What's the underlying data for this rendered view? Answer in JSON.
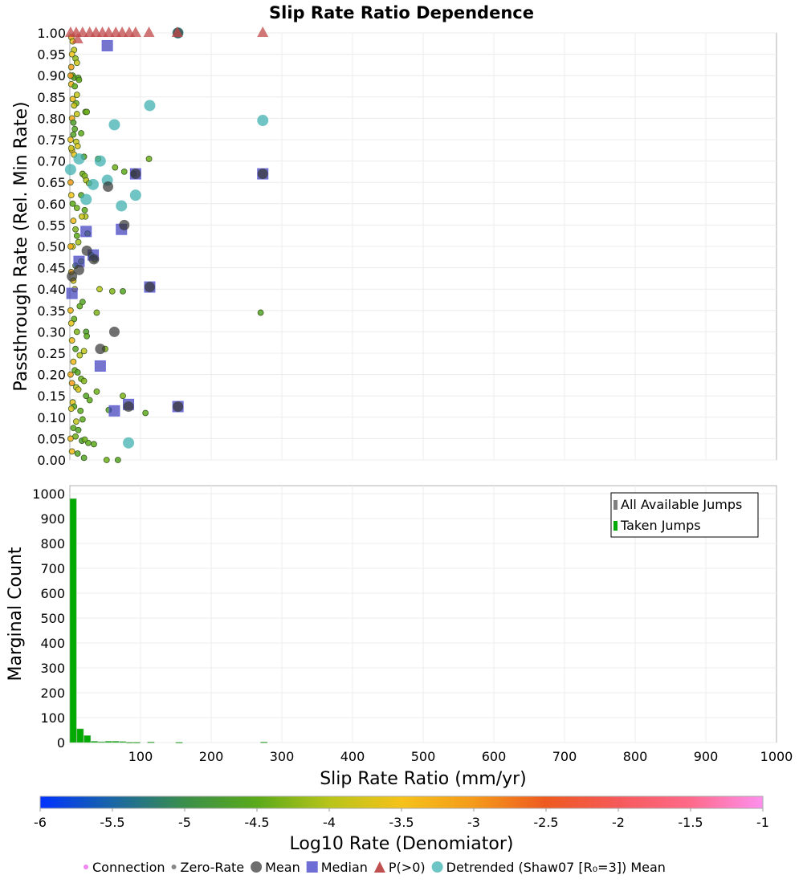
{
  "chart_data": [
    {
      "type": "scatter",
      "title": "Slip Rate Ratio Dependence",
      "xlabel": "Slip Rate Ratio (mm/yr)",
      "ylabel": "Passthrough Rate (Rel. Min Rate)",
      "xlim": [
        0,
        1000
      ],
      "ylim": [
        0,
        1
      ],
      "grid": true,
      "yticks": [
        "0.00",
        "0.05",
        "0.10",
        "0.15",
        "0.20",
        "0.25",
        "0.30",
        "0.35",
        "0.40",
        "0.45",
        "0.50",
        "0.55",
        "0.60",
        "0.65",
        "0.70",
        "0.75",
        "0.80",
        "0.85",
        "0.90",
        "0.95",
        "1.00"
      ],
      "colorbar": {
        "label": "Log10 Rate (Denomiator)",
        "range": [
          -6,
          -1
        ],
        "ticks": [
          "-6",
          "-5.5",
          "-5",
          "-4.5",
          "-4",
          "-3.5",
          "-3",
          "-2.5",
          "-2",
          "-1.5",
          "-1"
        ],
        "stops": [
          "#0033ff",
          "#1a66a6",
          "#3a8f4a",
          "#5aaa1a",
          "#b8c41a",
          "#f5c21a",
          "#f59a1a",
          "#ee5a20",
          "#f55a5a",
          "#ff6a8a",
          "#ff90ee"
        ]
      },
      "legend": {
        "placement": "bottom",
        "items": [
          {
            "label": "Connection",
            "marker": "small-dot",
            "color": "#ee88ee"
          },
          {
            "label": "Zero-Rate",
            "marker": "small-dot",
            "color": "#888888"
          },
          {
            "label": "Mean",
            "marker": "circle",
            "color": "#555555"
          },
          {
            "label": "Median",
            "marker": "square",
            "color": "#5555cc"
          },
          {
            "label": "P(>0)",
            "marker": "triangle",
            "color": "#c05050"
          },
          {
            "label": "Detrended (Shaw07 [R₀=3]) Mean",
            "marker": "circle",
            "color": "#55bbbb"
          }
        ]
      },
      "series": [
        {
          "name": "Mean",
          "points": [
            [
              54,
              0.64
            ],
            [
              77,
              0.55
            ],
            [
              24,
              0.49
            ],
            [
              34,
              0.47
            ],
            [
              13,
              0.445
            ],
            [
              3,
              0.43
            ],
            [
              43,
              0.26
            ],
            [
              63,
              0.3
            ],
            [
              93,
              0.67
            ],
            [
              113,
              0.405
            ],
            [
              153,
              0.125
            ],
            [
              83,
              0.125
            ],
            [
              273,
              0.67
            ],
            [
              153,
              1.0
            ]
          ]
        },
        {
          "name": "Median",
          "points": [
            [
              53,
              0.97
            ],
            [
              23,
              0.535
            ],
            [
              73,
              0.54
            ],
            [
              33,
              0.48
            ],
            [
              13,
              0.465
            ],
            [
              3,
              0.39
            ],
            [
              43,
              0.22
            ],
            [
              63,
              0.115
            ],
            [
              83,
              0.13
            ],
            [
              93,
              0.67
            ],
            [
              113,
              0.405
            ],
            [
              153,
              0.125
            ],
            [
              273,
              0.67
            ]
          ]
        },
        {
          "name": "P(>0)",
          "points": [
            [
              1,
              1.0
            ],
            [
              9,
              1.0
            ],
            [
              18,
              1.0
            ],
            [
              28,
              1.0
            ],
            [
              37,
              1.0
            ],
            [
              46,
              1.0
            ],
            [
              55,
              1.0
            ],
            [
              65,
              1.0
            ],
            [
              74,
              1.0
            ],
            [
              84,
              1.0
            ],
            [
              93,
              1.0
            ],
            [
              112,
              1.0
            ],
            [
              152,
              1.0
            ],
            [
              273,
              1.0
            ],
            [
              11,
              0.985
            ]
          ]
        },
        {
          "name": "Detrended (Shaw07 [R₀=3]) Mean",
          "points": [
            [
              113,
              0.83
            ],
            [
              63,
              0.785
            ],
            [
              273,
              0.795
            ],
            [
              13,
              0.705
            ],
            [
              43,
              0.7
            ],
            [
              1,
              0.68
            ],
            [
              53,
              0.655
            ],
            [
              33,
              0.645
            ],
            [
              23,
              0.61
            ],
            [
              93,
              0.62
            ],
            [
              73,
              0.595
            ],
            [
              83,
              0.04
            ],
            [
              153,
              1.0
            ]
          ]
        },
        {
          "name": "Connection",
          "colored_by": "log10_rate",
          "points": [
            [
              2,
              0.99,
              -3.2
            ],
            [
              4,
              0.98,
              -3.6
            ],
            [
              6,
              0.96,
              -3.9
            ],
            [
              3,
              0.95,
              -3.5
            ],
            [
              8,
              0.94,
              -4.2
            ],
            [
              2,
              0.92,
              -3.0
            ],
            [
              10,
              0.93,
              -3.8
            ],
            [
              4,
              0.9,
              -4.4
            ],
            [
              6,
              0.895,
              -4.6
            ],
            [
              12,
              0.895,
              -4.6
            ],
            [
              13,
              0.89,
              -4.5
            ],
            [
              2,
              0.88,
              -3.3
            ],
            [
              7,
              0.875,
              -4.5
            ],
            [
              10,
              0.855,
              -3.9
            ],
            [
              4,
              0.845,
              -3.4
            ],
            [
              9,
              0.835,
              -4.4
            ],
            [
              6,
              0.83,
              -3.8
            ],
            [
              22,
              0.815,
              -4.5
            ],
            [
              24,
              0.815,
              -4.4
            ],
            [
              10,
              0.81,
              -3.9
            ],
            [
              3,
              0.8,
              -3.1
            ],
            [
              5,
              0.79,
              -4.7
            ],
            [
              7,
              0.775,
              -4.6
            ],
            [
              16,
              0.765,
              -4.5
            ],
            [
              5,
              0.762,
              -4.6
            ],
            [
              9,
              0.745,
              -3.9
            ],
            [
              11,
              0.735,
              -3.7
            ],
            [
              3,
              0.725,
              -3.3
            ],
            [
              6,
              0.715,
              -3.6
            ],
            [
              20,
              0.71,
              -4.7
            ],
            [
              40,
              0.705,
              -4.3
            ],
            [
              112,
              0.705,
              -4.4
            ],
            [
              77,
              0.675,
              -4.5
            ],
            [
              18,
              0.67,
              -4.4
            ],
            [
              21,
              0.665,
              -4.3
            ],
            [
              23,
              0.655,
              -4.0
            ],
            [
              27,
              0.648,
              -4.2
            ],
            [
              64,
              0.685,
              -4.4
            ],
            [
              90,
              0.67,
              -4.5
            ],
            [
              16,
              0.62,
              -4.6
            ],
            [
              4,
              0.6,
              -4.5
            ],
            [
              21,
              0.585,
              -4.5
            ],
            [
              10,
              0.59,
              -4.4
            ],
            [
              22,
              0.57,
              -4.0
            ],
            [
              17,
              0.57,
              -3.8
            ],
            [
              5,
              0.56,
              -3.4
            ],
            [
              8,
              0.54,
              -4.3
            ],
            [
              10,
              0.525,
              -4.5
            ],
            [
              25,
              0.53,
              -4.3
            ],
            [
              12,
              0.51,
              -4.1
            ],
            [
              4,
              0.5,
              -3.7
            ],
            [
              35,
              0.47,
              -4.3
            ],
            [
              30,
              0.48,
              -4.5
            ],
            [
              16,
              0.465,
              -4.3
            ],
            [
              8,
              0.455,
              -4.5
            ],
            [
              2,
              0.44,
              -3.1
            ],
            [
              5,
              0.42,
              -3.6
            ],
            [
              7,
              0.4,
              -3.7
            ],
            [
              42,
              0.4,
              -4.0
            ],
            [
              60,
              0.395,
              -4.3
            ],
            [
              75,
              0.395,
              -4.6
            ],
            [
              270,
              0.345,
              -4.6
            ],
            [
              14,
              0.36,
              -4.5
            ],
            [
              18,
              0.37,
              -4.6
            ],
            [
              38,
              0.345,
              -4.3
            ],
            [
              6,
              0.33,
              -4.5
            ],
            [
              23,
              0.3,
              -4.7
            ],
            [
              10,
              0.3,
              -4.3
            ],
            [
              24,
              0.29,
              -4.5
            ],
            [
              3,
              0.28,
              -3.4
            ],
            [
              8,
              0.26,
              -4.6
            ],
            [
              20,
              0.255,
              -3.9
            ],
            [
              50,
              0.26,
              -4.3
            ],
            [
              14,
              0.245,
              -4.0
            ],
            [
              5,
              0.23,
              -3.4
            ],
            [
              7,
              0.21,
              -4.5
            ],
            [
              11,
              0.205,
              -4.6
            ],
            [
              16,
              0.19,
              -4.4
            ],
            [
              3,
              0.18,
              -3.0
            ],
            [
              20,
              0.185,
              -4.3
            ],
            [
              9,
              0.17,
              -4.0
            ],
            [
              12,
              0.165,
              -3.7
            ],
            [
              38,
              0.16,
              -4.4
            ],
            [
              75,
              0.15,
              -4.3
            ],
            [
              23,
              0.15,
              -4.6
            ],
            [
              28,
              0.14,
              -4.5
            ],
            [
              4,
              0.135,
              -3.6
            ],
            [
              6,
              0.125,
              -4.6
            ],
            [
              15,
              0.115,
              -4.5
            ],
            [
              55,
              0.117,
              -4.6
            ],
            [
              107,
              0.11,
              -4.5
            ],
            [
              18,
              0.095,
              -4.5
            ],
            [
              9,
              0.09,
              -3.9
            ],
            [
              5,
              0.075,
              -4.5
            ],
            [
              12,
              0.07,
              -4.6
            ],
            [
              17,
              0.045,
              -4.7
            ],
            [
              26,
              0.04,
              -4.5
            ],
            [
              21,
              0.048,
              -4.4
            ],
            [
              34,
              0.037,
              -4.5
            ],
            [
              8,
              0.055,
              -4.4
            ],
            [
              3,
              0.02,
              -3.4
            ],
            [
              11,
              0.015,
              -4.6
            ],
            [
              20,
              0.005,
              -4.6
            ],
            [
              52,
              0.0,
              -4.4
            ],
            [
              68,
              0.0,
              -4.6
            ],
            [
              1,
              0.65,
              -3.0
            ],
            [
              1,
              0.5,
              -3.2
            ],
            [
              1,
              0.35,
              -3.3
            ],
            [
              1,
              0.2,
              -3.1
            ],
            [
              1,
              0.05,
              -3.2
            ],
            [
              1,
              0.75,
              -3.4
            ],
            [
              1,
              0.9,
              -3.0
            ],
            [
              2,
              0.62,
              -3.5
            ],
            [
              2,
              0.32,
              -3.6
            ],
            [
              2,
              0.12,
              -3.7
            ],
            [
              2,
              0.73,
              -3.8
            ]
          ]
        }
      ]
    },
    {
      "type": "bar",
      "xlabel": "Slip Rate Ratio (mm/yr)",
      "ylabel": "Marginal Count",
      "xlim": [
        0,
        1000
      ],
      "ylim": [
        0,
        1030
      ],
      "grid": true,
      "xticks": [
        "100",
        "200",
        "300",
        "400",
        "500",
        "600",
        "700",
        "800",
        "900",
        "1000"
      ],
      "yticks": [
        "0",
        "100",
        "200",
        "300",
        "400",
        "500",
        "600",
        "700",
        "800",
        "900",
        "1000"
      ],
      "legend": {
        "placement": "top-right",
        "items": [
          {
            "label": "All Available Jumps",
            "color": "#808080"
          },
          {
            "label": "Taken Jumps",
            "color": "#00aa00"
          }
        ]
      },
      "bin_width": 10,
      "series": [
        {
          "name": "Taken Jumps",
          "bins": [
            [
              0,
              980
            ],
            [
              10,
              55
            ],
            [
              20,
              28
            ],
            [
              30,
              5
            ],
            [
              40,
              3
            ],
            [
              50,
              5
            ],
            [
              60,
              5
            ],
            [
              70,
              4
            ],
            [
              80,
              1
            ],
            [
              90,
              1
            ],
            [
              110,
              2
            ],
            [
              150,
              1
            ],
            [
              270,
              2
            ]
          ]
        }
      ]
    }
  ]
}
